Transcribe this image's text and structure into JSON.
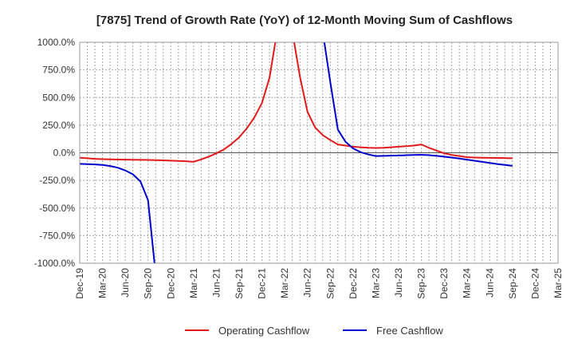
{
  "chart_data": {
    "type": "line",
    "title": "[7875]  Trend of Growth Rate (YoY) of 12-Month Moving Sum of Cashflows",
    "xlabel": "",
    "ylabel": "",
    "ylim": [
      -1000,
      1000
    ],
    "yticks": [
      1000,
      750,
      500,
      250,
      0,
      -250,
      -500,
      -750,
      -1000
    ],
    "ytick_labels": [
      "1000.0%",
      "750.0%",
      "500.0%",
      "250.0%",
      "0.0%",
      "-250.0%",
      "-500.0%",
      "-750.0%",
      "-1000.0%"
    ],
    "x_range": [
      "2019-12",
      "2025-03"
    ],
    "x_ticks": [
      "2019-12",
      "2020-03",
      "2020-06",
      "2020-09",
      "2020-12",
      "2021-03",
      "2021-06",
      "2021-09",
      "2021-12",
      "2022-03",
      "2022-06",
      "2022-09",
      "2022-12",
      "2023-03",
      "2023-06",
      "2023-09",
      "2023-12",
      "2024-03",
      "2024-06",
      "2024-09",
      "2024-12",
      "2025-03"
    ],
    "x_tick_labels": [
      "Dec-19",
      "Mar-20",
      "Jun-20",
      "Sep-20",
      "Dec-20",
      "Mar-21",
      "Jun-21",
      "Sep-21",
      "Dec-21",
      "Mar-22",
      "Jun-22",
      "Sep-22",
      "Dec-22",
      "Mar-23",
      "Jun-23",
      "Sep-23",
      "Dec-23",
      "Mar-24",
      "Jun-24",
      "Sep-24",
      "Dec-24",
      "Mar-25"
    ],
    "grid": true,
    "legend_position": "bottom",
    "series": [
      {
        "name": "Operating Cashflow",
        "color": "#e31a1c",
        "points": [
          [
            "2019-12",
            -45
          ],
          [
            "2020-01",
            -50
          ],
          [
            "2020-02",
            -55
          ],
          [
            "2020-03",
            -58
          ],
          [
            "2020-04",
            -60
          ],
          [
            "2020-05",
            -61
          ],
          [
            "2020-06",
            -62
          ],
          [
            "2020-07",
            -63
          ],
          [
            "2020-08",
            -64
          ],
          [
            "2020-09",
            -65
          ],
          [
            "2020-10",
            -67
          ],
          [
            "2020-11",
            -69
          ],
          [
            "2020-12",
            -71
          ],
          [
            "2021-01",
            -74
          ],
          [
            "2021-02",
            -77
          ],
          [
            "2021-03",
            -82
          ],
          [
            "2021-04",
            -60
          ],
          [
            "2021-05",
            -35
          ],
          [
            "2021-06",
            -5
          ],
          [
            "2021-07",
            30
          ],
          [
            "2021-08",
            80
          ],
          [
            "2021-09",
            140
          ],
          [
            "2021-10",
            220
          ],
          [
            "2021-11",
            320
          ],
          [
            "2021-12",
            450
          ],
          [
            "2022-01",
            680
          ],
          [
            "2022-02",
            1100
          ],
          [
            "2022-03",
            null
          ],
          [
            "2022-04",
            1100
          ],
          [
            "2022-05",
            690
          ],
          [
            "2022-06",
            370
          ],
          [
            "2022-07",
            230
          ],
          [
            "2022-08",
            160
          ],
          [
            "2022-09",
            115
          ],
          [
            "2022-10",
            75
          ],
          [
            "2022-11",
            65
          ],
          [
            "2022-12",
            55
          ],
          [
            "2023-01",
            50
          ],
          [
            "2023-02",
            45
          ],
          [
            "2023-03",
            43
          ],
          [
            "2023-04",
            45
          ],
          [
            "2023-05",
            50
          ],
          [
            "2023-06",
            55
          ],
          [
            "2023-07",
            60
          ],
          [
            "2023-08",
            65
          ],
          [
            "2023-09",
            75
          ],
          [
            "2023-10",
            45
          ],
          [
            "2023-11",
            20
          ],
          [
            "2023-12",
            -5
          ],
          [
            "2024-01",
            -20
          ],
          [
            "2024-02",
            -30
          ],
          [
            "2024-03",
            -40
          ],
          [
            "2024-04",
            -43
          ],
          [
            "2024-05",
            -45
          ],
          [
            "2024-06",
            -46
          ],
          [
            "2024-07",
            -47
          ],
          [
            "2024-08",
            -48
          ],
          [
            "2024-09",
            -50
          ]
        ]
      },
      {
        "name": "Free Cashflow",
        "color": "#0000cc",
        "points": [
          [
            "2019-12",
            -100
          ],
          [
            "2020-01",
            -103
          ],
          [
            "2020-02",
            -106
          ],
          [
            "2020-03",
            -110
          ],
          [
            "2020-04",
            -120
          ],
          [
            "2020-05",
            -135
          ],
          [
            "2020-06",
            -160
          ],
          [
            "2020-07",
            -195
          ],
          [
            "2020-08",
            -260
          ],
          [
            "2020-09",
            -430
          ],
          [
            "2020-10",
            -1100
          ],
          [
            "2020-11",
            null
          ],
          [
            "2022-08",
            1100
          ],
          [
            "2022-09",
            640
          ],
          [
            "2022-10",
            210
          ],
          [
            "2022-11",
            100
          ],
          [
            "2022-12",
            40
          ],
          [
            "2023-01",
            5
          ],
          [
            "2023-02",
            -15
          ],
          [
            "2023-03",
            -30
          ],
          [
            "2023-04",
            -28
          ],
          [
            "2023-05",
            -26
          ],
          [
            "2023-06",
            -24
          ],
          [
            "2023-07",
            -22
          ],
          [
            "2023-08",
            -20
          ],
          [
            "2023-09",
            -18
          ],
          [
            "2023-10",
            -22
          ],
          [
            "2023-11",
            -28
          ],
          [
            "2023-12",
            -35
          ],
          [
            "2024-01",
            -43
          ],
          [
            "2024-02",
            -52
          ],
          [
            "2024-03",
            -62
          ],
          [
            "2024-04",
            -72
          ],
          [
            "2024-05",
            -82
          ],
          [
            "2024-06",
            -92
          ],
          [
            "2024-07",
            -102
          ],
          [
            "2024-08",
            -110
          ],
          [
            "2024-09",
            -118
          ]
        ]
      }
    ]
  }
}
